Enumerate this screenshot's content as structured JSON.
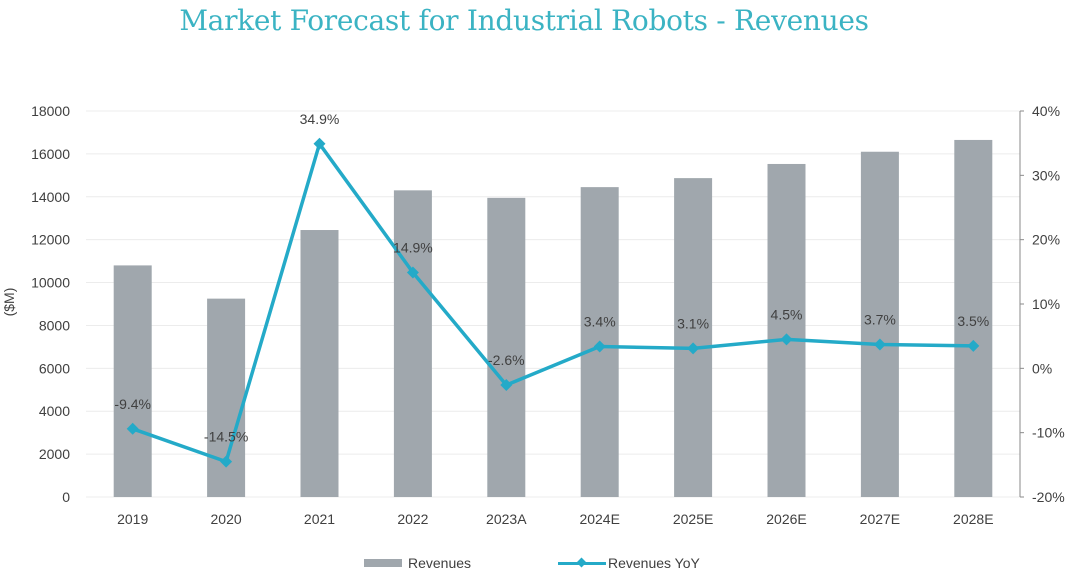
{
  "chart_data": {
    "type": "bar",
    "title": "Market Forecast for Industrial Robots - Revenues",
    "xlabel": "",
    "ylabel": "($M)",
    "ylim": [
      0,
      18000
    ],
    "yticks": [
      "0",
      "2000",
      "4000",
      "6000",
      "8000",
      "10000",
      "12000",
      "14000",
      "16000",
      "18000"
    ],
    "y2lim": [
      -20,
      40
    ],
    "y2ticks": [
      "-20%",
      "-10%",
      "0%",
      "10%",
      "20%",
      "30%",
      "40%"
    ],
    "grid": true,
    "legend_position": "bottom",
    "categories": [
      "2019",
      "2020",
      "2021",
      "2022",
      "2023A",
      "2024E",
      "2025E",
      "2026E",
      "2027E",
      "2028E"
    ],
    "series": [
      {
        "name": "Revenues",
        "type": "bar",
        "axis": "left",
        "color": "#a0a7ad",
        "values": [
          10800,
          9250,
          12450,
          14300,
          13950,
          14450,
          14870,
          15530,
          16100,
          16650
        ]
      },
      {
        "name": "Revenues YoY",
        "type": "line",
        "axis": "right",
        "color": "#24aac8",
        "values": [
          -9.4,
          -14.5,
          34.9,
          14.9,
          -2.6,
          3.4,
          3.1,
          4.5,
          3.7,
          3.5
        ],
        "labels": [
          "-9.4%",
          "-14.5%",
          "34.9%",
          "14.9%",
          "-2.6%",
          "3.4%",
          "3.1%",
          "4.5%",
          "3.7%",
          "3.5%"
        ]
      }
    ]
  }
}
